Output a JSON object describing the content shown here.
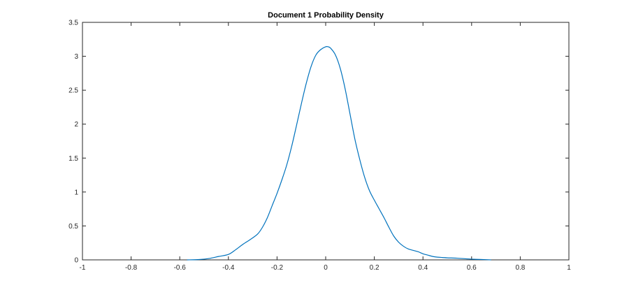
{
  "chart_data": {
    "type": "line",
    "title": "Document 1 Probability Density",
    "xlabel": "",
    "ylabel": "",
    "xlim": [
      -1,
      1
    ],
    "ylim": [
      0,
      3.5
    ],
    "x_ticks": [
      -1,
      -0.8,
      -0.6,
      -0.4,
      -0.2,
      0,
      0.2,
      0.4,
      0.6,
      0.8,
      1
    ],
    "x_tick_labels": [
      "-1",
      "-0.8",
      "-0.6",
      "-0.4",
      "-0.2",
      "0",
      "0.2",
      "0.4",
      "0.6",
      "0.8",
      "1"
    ],
    "y_ticks": [
      0,
      0.5,
      1,
      1.5,
      2,
      2.5,
      3,
      3.5
    ],
    "y_tick_labels": [
      "0",
      "0.5",
      "1",
      "1.5",
      "2",
      "2.5",
      "3",
      "3.5"
    ],
    "grid": false,
    "series": [
      {
        "color": "#0072BD",
        "x": [
          -0.57,
          -0.52,
          -0.48,
          -0.44,
          -0.4,
          -0.37,
          -0.34,
          -0.31,
          -0.28,
          -0.26,
          -0.24,
          -0.22,
          -0.2,
          -0.18,
          -0.16,
          -0.14,
          -0.12,
          -0.1,
          -0.08,
          -0.06,
          -0.04,
          -0.02,
          0.0,
          0.01,
          0.02,
          0.04,
          0.06,
          0.08,
          0.1,
          0.12,
          0.14,
          0.16,
          0.18,
          0.2,
          0.22,
          0.24,
          0.26,
          0.28,
          0.3,
          0.32,
          0.34,
          0.36,
          0.38,
          0.4,
          0.42,
          0.44,
          0.46,
          0.48,
          0.5,
          0.54,
          0.58,
          0.62,
          0.66,
          0.68
        ],
        "y": [
          0.0,
          0.005,
          0.02,
          0.05,
          0.08,
          0.15,
          0.23,
          0.3,
          0.38,
          0.48,
          0.62,
          0.8,
          0.98,
          1.18,
          1.4,
          1.67,
          1.98,
          2.3,
          2.6,
          2.85,
          3.02,
          3.1,
          3.14,
          3.14,
          3.12,
          3.02,
          2.82,
          2.52,
          2.15,
          1.78,
          1.48,
          1.22,
          1.02,
          0.88,
          0.75,
          0.62,
          0.48,
          0.35,
          0.26,
          0.2,
          0.16,
          0.14,
          0.12,
          0.09,
          0.07,
          0.05,
          0.04,
          0.035,
          0.03,
          0.025,
          0.015,
          0.008,
          0.003,
          0.0
        ]
      }
    ]
  }
}
